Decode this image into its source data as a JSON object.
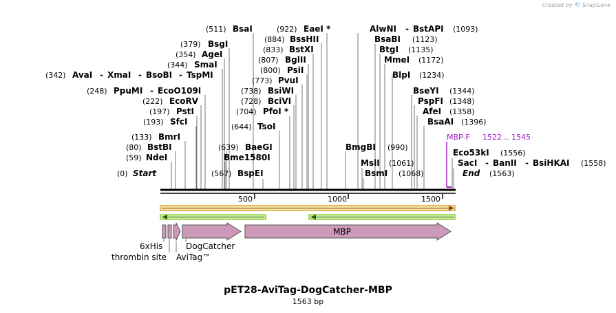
{
  "branding": {
    "text": "Created by",
    "app": "SnapGene"
  },
  "title": "pET28-AviTag-DogCatcher-MBP",
  "subtitle": "1563 bp",
  "sequence_length": 1563,
  "ruler_ticks": [
    500,
    1000,
    1500
  ],
  "enzymes": [
    {
      "pos": 511,
      "labels": [
        "BsaI"
      ]
    },
    {
      "pos": 922,
      "labels": [
        "EaeI *"
      ]
    },
    {
      "pos": 379,
      "labels": [
        "BsgI"
      ]
    },
    {
      "pos": 884,
      "labels": [
        "BssHII"
      ]
    },
    {
      "pos": 354,
      "labels": [
        "AgeI"
      ]
    },
    {
      "pos": 833,
      "labels": [
        "BstXI"
      ]
    },
    {
      "pos": 344,
      "labels": [
        "SmaI"
      ]
    },
    {
      "pos": 807,
      "labels": [
        "BglII"
      ]
    },
    {
      "pos": 342,
      "labels": [
        "AvaI",
        "XmaI",
        "BsoBI",
        "TspMI"
      ]
    },
    {
      "pos": 800,
      "labels": [
        "PsiI"
      ]
    },
    {
      "pos": 773,
      "labels": [
        "PvuI"
      ]
    },
    {
      "pos": 248,
      "labels": [
        "PpuMI",
        "EcoO109I"
      ]
    },
    {
      "pos": 738,
      "labels": [
        "BsiWI"
      ]
    },
    {
      "pos": 222,
      "labels": [
        "EcoRV"
      ]
    },
    {
      "pos": 728,
      "labels": [
        "BciVI"
      ]
    },
    {
      "pos": 197,
      "labels": [
        "PstI"
      ]
    },
    {
      "pos": 704,
      "labels": [
        "PfoI *"
      ]
    },
    {
      "pos": 193,
      "labels": [
        "SfcI"
      ]
    },
    {
      "pos": 644,
      "labels": [
        "TsoI"
      ]
    },
    {
      "pos": 133,
      "labels": [
        "BmrI"
      ]
    },
    {
      "pos": 80,
      "labels": [
        "BstBI"
      ]
    },
    {
      "pos": 639,
      "labels": [
        "BaeGI"
      ]
    },
    {
      "pos": 59,
      "labels": [
        "NdeI"
      ]
    },
    {
      "pos": 639,
      "labels": [
        "Bme1580I"
      ]
    },
    {
      "pos": 567,
      "labels": [
        "BspEI"
      ]
    },
    {
      "pos": 1093,
      "labels": [
        "AlwNI",
        "BstAPI"
      ]
    },
    {
      "pos": 1123,
      "labels": [
        "BsaBI"
      ]
    },
    {
      "pos": 1135,
      "labels": [
        "BtgI"
      ]
    },
    {
      "pos": 1172,
      "labels": [
        "MmeI"
      ]
    },
    {
      "pos": 1234,
      "labels": [
        "BlpI"
      ]
    },
    {
      "pos": 1344,
      "labels": [
        "BseYI"
      ]
    },
    {
      "pos": 1348,
      "labels": [
        "PspFI"
      ]
    },
    {
      "pos": 1358,
      "labels": [
        "AfeI"
      ]
    },
    {
      "pos": 1396,
      "labels": [
        "BsaAI"
      ]
    },
    {
      "pos": 990,
      "labels": [
        "BmgBI"
      ]
    },
    {
      "pos": 1061,
      "labels": [
        "MslI"
      ]
    },
    {
      "pos": 1068,
      "labels": [
        "BsmI"
      ]
    },
    {
      "pos": 1556,
      "labels": [
        "Eco53kI"
      ]
    },
    {
      "pos": 1558,
      "labels": [
        "SacI",
        "BanII",
        "BsiHKAI"
      ]
    }
  ],
  "ends": {
    "start_label": "Start",
    "start_pos": 0,
    "end_label": "End",
    "end_pos": 1563
  },
  "primer": {
    "name": "MBP-F",
    "range": "1522 .. 1545"
  },
  "features": [
    {
      "name": "6xHis",
      "type": "cds"
    },
    {
      "name": "thrombin site",
      "type": "cds"
    },
    {
      "name": "AviTag™",
      "type": "cds"
    },
    {
      "name": "DogCatcher",
      "type": "cds"
    },
    {
      "name": "MBP",
      "type": "cds"
    }
  ],
  "colors": {
    "feature_fill": "#cc99b8",
    "feature_stroke": "#555555",
    "orf_orange": "#e8a33c",
    "orf_green": "#8fd13f",
    "primer": "#a020c8"
  }
}
